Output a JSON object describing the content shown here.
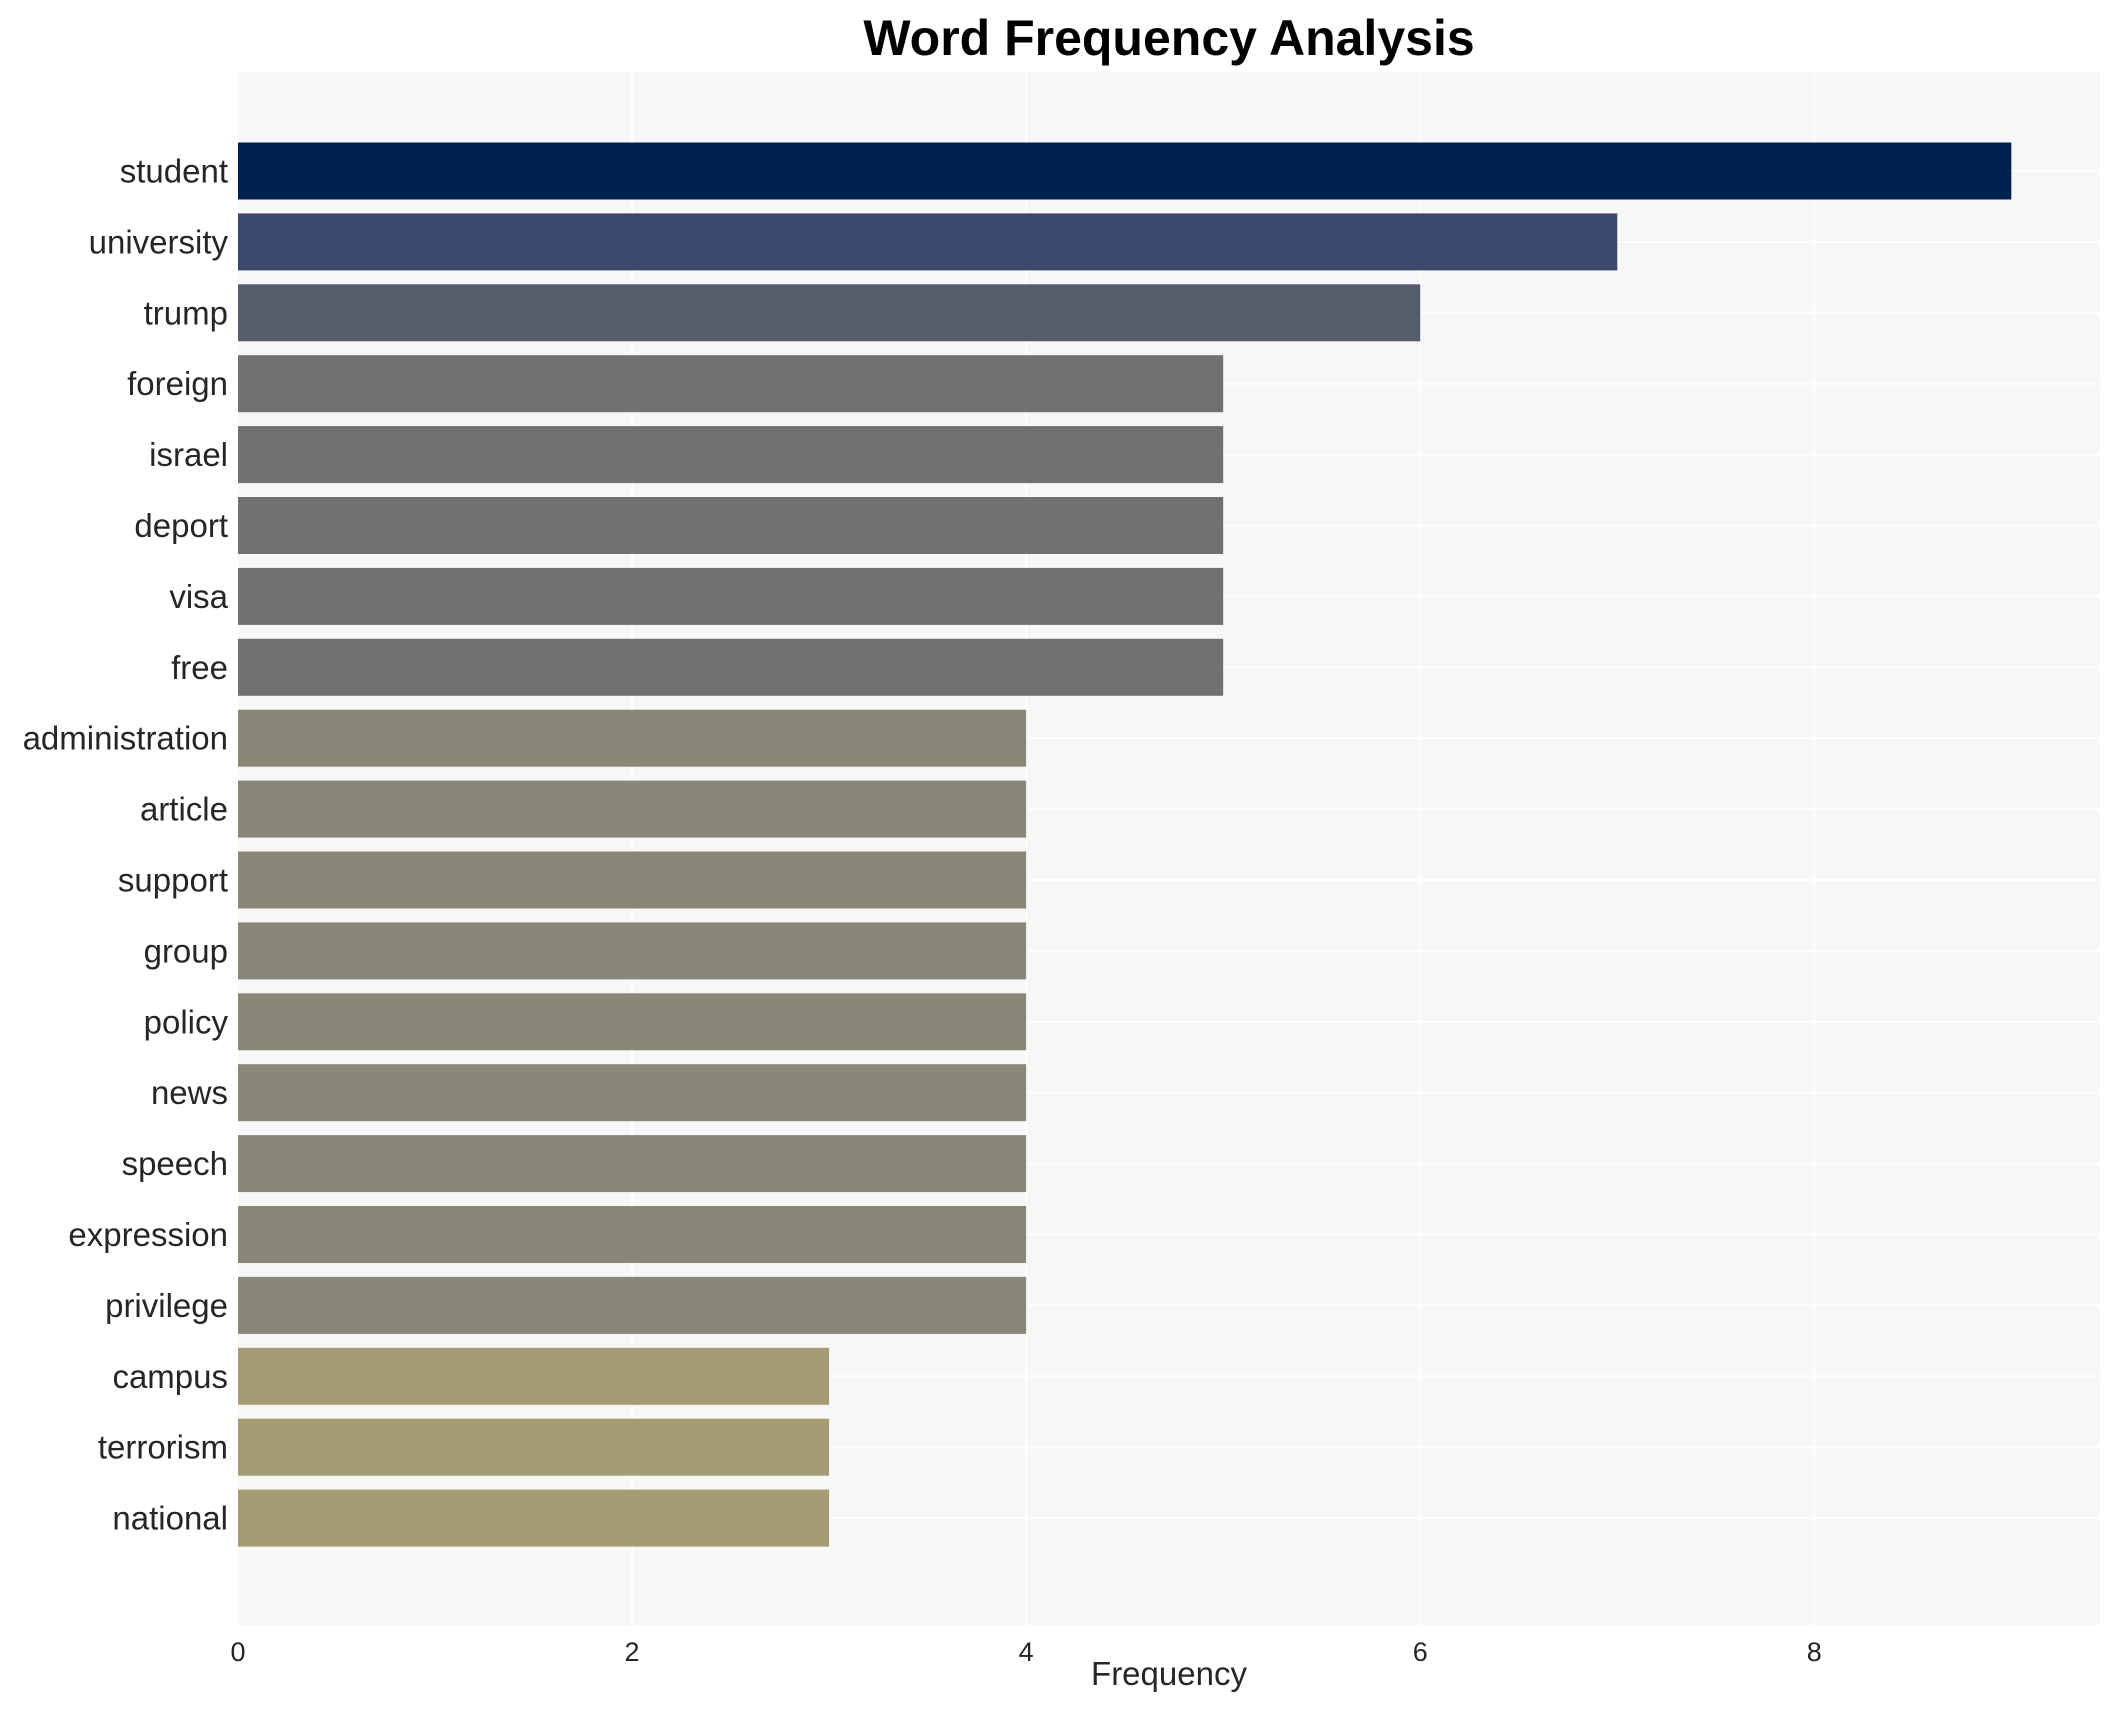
{
  "chart_data": {
    "type": "bar",
    "orientation": "horizontal",
    "title": "Word Frequency Analysis",
    "xlabel": "Frequency",
    "ylabel": "",
    "xlim": [
      0,
      9.45
    ],
    "xticks": [
      0,
      2,
      4,
      6,
      8
    ],
    "grid": true,
    "legend": "none",
    "categories": [
      "student",
      "university",
      "trump",
      "foreign",
      "israel",
      "deport",
      "visa",
      "free",
      "administration",
      "article",
      "support",
      "group",
      "policy",
      "news",
      "speech",
      "expression",
      "privilege",
      "campus",
      "terrorism",
      "national"
    ],
    "values": [
      9,
      7,
      6,
      5,
      5,
      5,
      5,
      5,
      4,
      4,
      4,
      4,
      4,
      4,
      4,
      4,
      4,
      3,
      3,
      3
    ],
    "colors": {
      "9": "#00224e",
      "7": "#3a486b",
      "6": "#575c6d",
      "5": "#707173",
      "4": "#8a8678",
      "3": "#a59c74"
    },
    "plot_background": "#f7f7f7",
    "grid_color": "#ffffff"
  }
}
